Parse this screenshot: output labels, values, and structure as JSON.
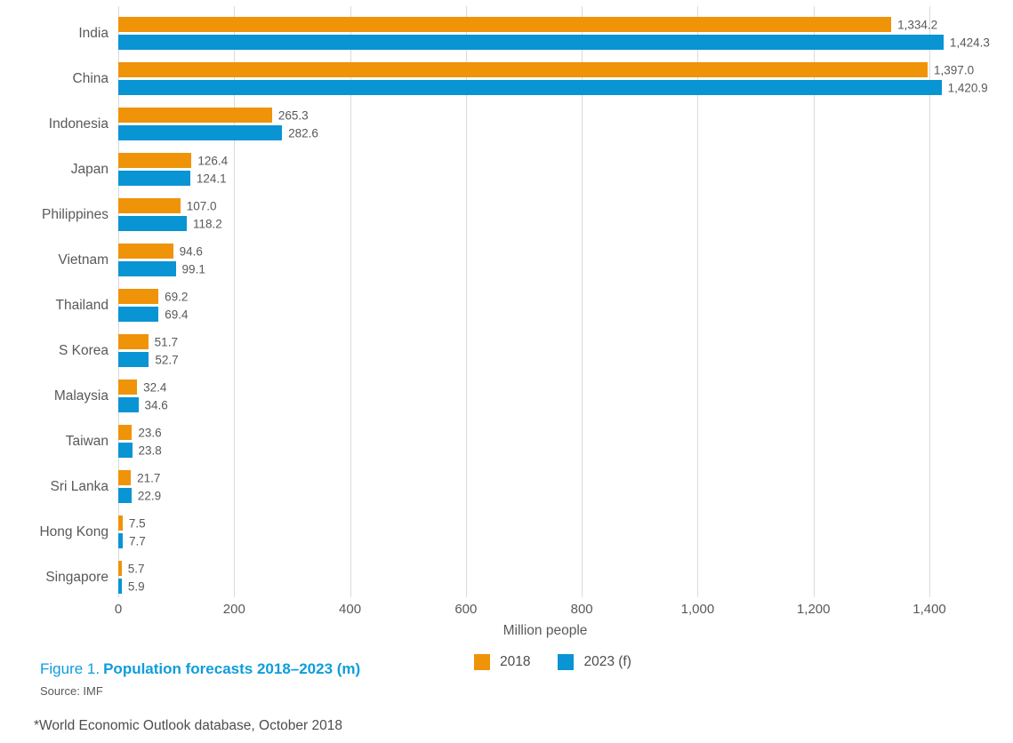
{
  "figure": {
    "caption_prefix": "Figure 1.",
    "caption_title": "Population forecasts 2018–2023 (m)",
    "source": "Source: IMF",
    "footnote": "*World Economic Outlook database, October 2018"
  },
  "colors": {
    "orange": "#ef9309",
    "blue": "#0994d3",
    "caption_blue": "#0d9ddb",
    "gridline": "#dadada",
    "text_gray": "#595959"
  },
  "legend": {
    "items": [
      {
        "label": "2018",
        "color": "#ef9309"
      },
      {
        "label": "2023 (f)",
        "color": "#0994d3"
      }
    ]
  },
  "chart_data": {
    "type": "bar",
    "orientation": "horizontal",
    "title": "Figure 1. Population forecasts 2018–2023 (m)",
    "xlabel": "Million people",
    "ylabel": "",
    "xlim": [
      0,
      1523
    ],
    "grid": "vertical",
    "legend_position": "bottom",
    "categories": [
      "India",
      "China",
      "Indonesia",
      "Japan",
      "Philippines",
      "Vietnam",
      "Thailand",
      "S Korea",
      "Malaysia",
      "Taiwan",
      "Sri Lanka",
      "Hong Kong",
      "Singapore"
    ],
    "series": [
      {
        "name": "2018",
        "color": "#ef9309",
        "values": [
          1334.2,
          1397.0,
          265.3,
          126.4,
          107.0,
          94.6,
          69.2,
          51.7,
          32.4,
          23.6,
          21.7,
          7.5,
          5.7
        ],
        "labels": [
          "1,334.2",
          "1,397.0",
          "265.3",
          "126.4",
          "107.0",
          "94.6",
          "69.2",
          "51.7",
          "32.4",
          "23.6",
          "21.7",
          "7.5",
          "5.7"
        ]
      },
      {
        "name": "2023 (f)",
        "color": "#0994d3",
        "values": [
          1424.3,
          1420.9,
          282.6,
          124.1,
          118.2,
          99.1,
          69.4,
          52.7,
          34.6,
          23.8,
          22.9,
          7.7,
          5.9
        ],
        "labels": [
          "1,424.3",
          "1,420.9",
          "282.6",
          "124.1",
          "118.2",
          "99.1",
          "69.4",
          "52.7",
          "34.6",
          "23.8",
          "22.9",
          "7.7",
          "5.9"
        ]
      }
    ],
    "x_ticks": [
      {
        "value": 0,
        "label": "0"
      },
      {
        "value": 200,
        "label": "200"
      },
      {
        "value": 400,
        "label": "400"
      },
      {
        "value": 600,
        "label": "600"
      },
      {
        "value": 800,
        "label": "800"
      },
      {
        "value": 1000,
        "label": "1,000"
      },
      {
        "value": 1200,
        "label": "1,200"
      },
      {
        "value": 1400,
        "label": "1,400"
      }
    ]
  }
}
